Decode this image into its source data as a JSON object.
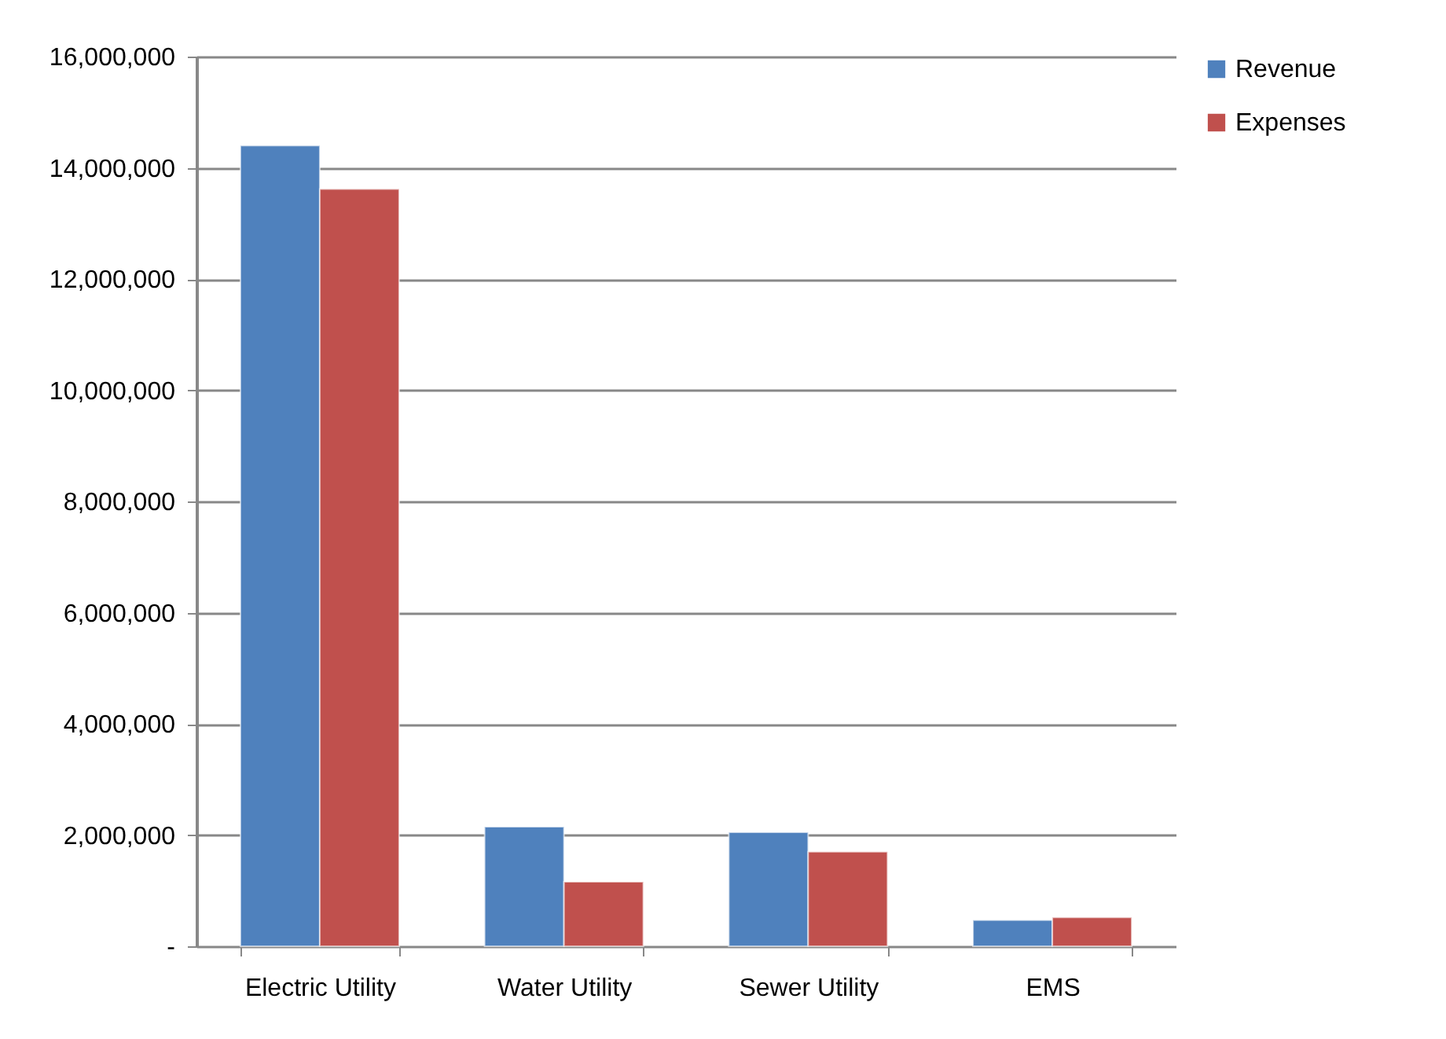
{
  "chart_data": {
    "type": "bar",
    "categories": [
      "Electric Utility",
      "Water Utility",
      "Sewer Utility",
      "EMS"
    ],
    "series": [
      {
        "name": "Revenue",
        "color": "#4f81bd",
        "values": [
          14400000,
          2150000,
          2050000,
          470000
        ]
      },
      {
        "name": "Expenses",
        "color": "#c0504d",
        "values": [
          13620000,
          1160000,
          1700000,
          520000
        ]
      }
    ],
    "ylim": [
      0,
      16000000
    ],
    "yticks": [
      {
        "value": 0,
        "label": "-"
      },
      {
        "value": 2000000,
        "label": "2,000,000"
      },
      {
        "value": 4000000,
        "label": "4,000,000"
      },
      {
        "value": 6000000,
        "label": "6,000,000"
      },
      {
        "value": 8000000,
        "label": "8,000,000"
      },
      {
        "value": 10000000,
        "label": "10,000,000"
      },
      {
        "value": 12000000,
        "label": "12,000,000"
      },
      {
        "value": 14000000,
        "label": "14,000,000"
      },
      {
        "value": 16000000,
        "label": "16,000,000"
      }
    ],
    "grid": "y",
    "legend": "right"
  }
}
